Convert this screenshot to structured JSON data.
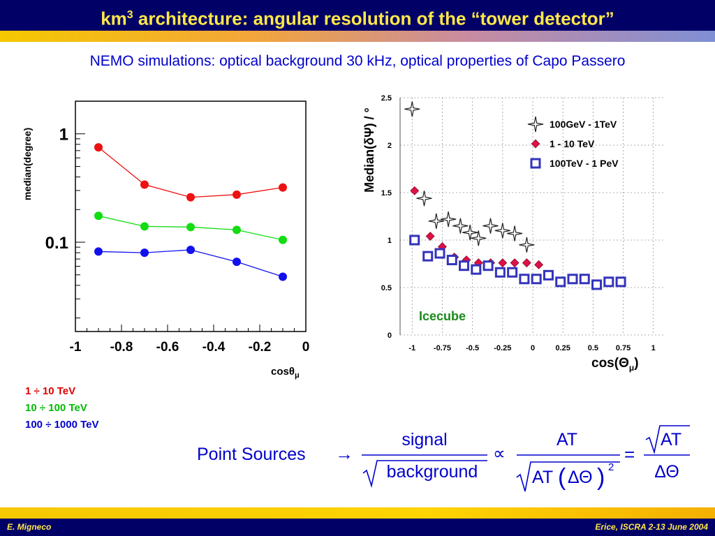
{
  "slide": {
    "title_prefix": "km",
    "title_sup": "3",
    "title_suffix": " architecture: angular resolution of the “tower detector”",
    "subtitle": "NEMO simulations: optical background 30 kHz, optical properties of Capo Passero",
    "footer_left": "E. Migneco",
    "footer_right": "Erice, ISCRA 2-13 June 2004"
  },
  "energy_legend": [
    {
      "label": "1 ÷ 10 TeV",
      "color": "#dd0000"
    },
    {
      "label": "10 ÷ 100 TeV",
      "color": "#00bb00"
    },
    {
      "label": "100 ÷ 1000 TeV",
      "color": "#0000cc"
    }
  ],
  "formula": {
    "lhs": "Point Sources",
    "arrow": "→",
    "signal": "signal",
    "background": "background",
    "proportional": "∝",
    "at_num": "AT",
    "at_den": "AT",
    "delta_theta": "ΔΘ",
    "exponent": "2",
    "equals": "=",
    "result_num": "AT",
    "result_den": "ΔΘ"
  },
  "chart_data": [
    {
      "type": "line",
      "title": "",
      "xlabel": "cosθ",
      "xlabel_sub": "μ",
      "ylabel": "median(degree)",
      "yscale": "log",
      "xlim": [
        -1,
        0
      ],
      "ylim": [
        0.015,
        2.0
      ],
      "x_tick_labels": [
        "-1",
        "-0.8",
        "-0.6",
        "-0.4",
        "-0.2",
        "0"
      ],
      "x_ticks": [
        -1,
        -0.8,
        -0.6,
        -0.4,
        -0.2,
        0
      ],
      "y_tick_labels": [
        "1",
        "0.1"
      ],
      "y_ticks": [
        1,
        0.1
      ],
      "series": [
        {
          "name": "1 ÷ 10 TeV",
          "color": "#ee1111",
          "x": [
            -0.9,
            -0.7,
            -0.5,
            -0.3,
            -0.1
          ],
          "values": [
            0.75,
            0.34,
            0.26,
            0.275,
            0.32
          ]
        },
        {
          "name": "10 ÷ 100 TeV",
          "color": "#11dd11",
          "x": [
            -0.9,
            -0.7,
            -0.5,
            -0.3,
            -0.1
          ],
          "values": [
            0.175,
            0.14,
            0.138,
            0.13,
            0.105
          ]
        },
        {
          "name": "100 ÷ 1000 TeV",
          "color": "#1111ee",
          "x": [
            -0.9,
            -0.7,
            -0.5,
            -0.3,
            -0.1
          ],
          "values": [
            0.082,
            0.08,
            0.085,
            0.066,
            0.048
          ]
        }
      ]
    },
    {
      "type": "scatter",
      "title": "",
      "xlabel": "cos(Θ",
      "xlabel_sub": "μ",
      "xlabel_end": ")",
      "ylabel": "Median(δΨ) / °",
      "xlim": [
        -1.1,
        1.1
      ],
      "ylim": [
        0,
        2.5
      ],
      "x_tick_labels": [
        "-1",
        "-0.75",
        "-0.5",
        "-0.25",
        "0",
        "0.25",
        "0.5",
        "0.75",
        "1"
      ],
      "x_ticks": [
        -1,
        -0.75,
        -0.5,
        -0.25,
        0,
        0.25,
        0.5,
        0.75,
        1
      ],
      "y_tick_labels": [
        "0",
        "0.5",
        "1",
        "1.5",
        "2",
        "2.5"
      ],
      "y_ticks": [
        0,
        0.5,
        1,
        1.5,
        2,
        2.5
      ],
      "annotation": "Icecube",
      "series": [
        {
          "name": "100GeV - 1TeV",
          "marker": "star",
          "color": "#222222",
          "x": [
            -1.0,
            -0.9,
            -0.8,
            -0.7,
            -0.6,
            -0.52,
            -0.45,
            -0.35,
            -0.25,
            -0.15,
            -0.05
          ],
          "values": [
            2.38,
            1.44,
            1.2,
            1.22,
            1.15,
            1.08,
            1.02,
            1.15,
            1.1,
            1.07,
            0.95
          ]
        },
        {
          "name": "1 - 10 TeV",
          "marker": "diamond",
          "color": "#dd1144",
          "x": [
            -0.98,
            -0.85,
            -0.75,
            -0.65,
            -0.55,
            -0.45,
            -0.35,
            -0.25,
            -0.15,
            -0.05,
            0.05
          ],
          "values": [
            1.52,
            1.04,
            0.93,
            0.82,
            0.79,
            0.76,
            0.76,
            0.76,
            0.76,
            0.76,
            0.74
          ]
        },
        {
          "name": "100TeV - 1 PeV",
          "marker": "square",
          "color": "#3333bb",
          "x": [
            -0.98,
            -0.87,
            -0.77,
            -0.67,
            -0.57,
            -0.47,
            -0.37,
            -0.27,
            -0.17,
            -0.07,
            0.03,
            0.13,
            0.23,
            0.33,
            0.43,
            0.53,
            0.63,
            0.73
          ],
          "values": [
            1.0,
            0.83,
            0.86,
            0.79,
            0.73,
            0.69,
            0.73,
            0.66,
            0.66,
            0.59,
            0.59,
            0.63,
            0.56,
            0.59,
            0.59,
            0.53,
            0.56,
            0.56
          ]
        }
      ]
    }
  ]
}
